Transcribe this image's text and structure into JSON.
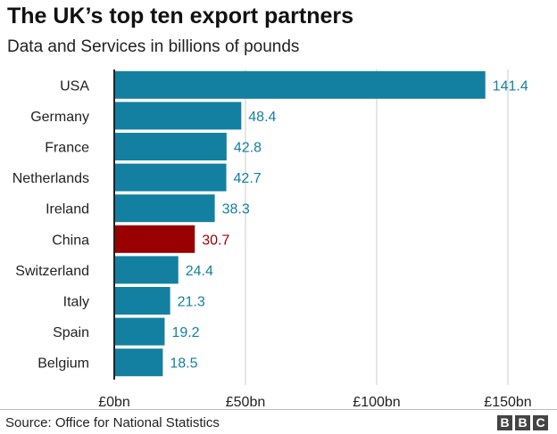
{
  "title": "The UK’s top ten export partners",
  "subtitle": "Data and Services in billions of pounds",
  "footer": {
    "source": "Source: Office for National Statistics",
    "logo": [
      "B",
      "B",
      "C"
    ]
  },
  "colors": {
    "bar": "#1380A1",
    "highlight": "#990000",
    "gridline": "#cccccc",
    "axis": "#222222"
  },
  "chart_data": {
    "type": "bar",
    "orientation": "horizontal",
    "categories": [
      "USA",
      "Germany",
      "France",
      "Netherlands",
      "Ireland",
      "China",
      "Switzerland",
      "Italy",
      "Spain",
      "Belgium"
    ],
    "values": [
      141.4,
      48.4,
      42.8,
      42.7,
      38.3,
      30.7,
      24.4,
      21.3,
      19.2,
      18.5
    ],
    "value_labels": [
      "141.4",
      "48.4",
      "42.8",
      "42.7",
      "38.3",
      "30.7",
      "24.4",
      "21.3",
      "19.2",
      "18.5"
    ],
    "highlight_category": "China",
    "xlim": [
      0,
      150
    ],
    "xticks": [
      0,
      50,
      100,
      150
    ],
    "xtick_labels": [
      "£0bn",
      "£50bn",
      "£100bn",
      "£150bn"
    ],
    "grid": true,
    "legend": "none"
  }
}
